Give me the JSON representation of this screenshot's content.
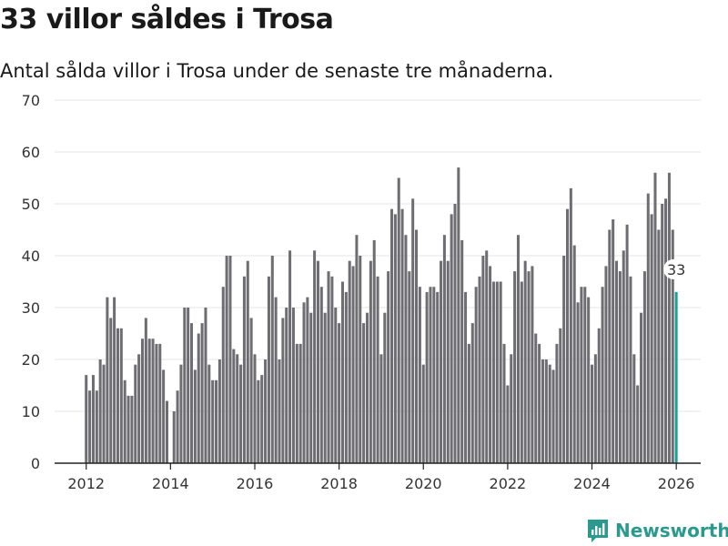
{
  "title": "33 villor såldes i Trosa",
  "subtitle": "Antal sålda villor i Trosa under de senaste tre månaderna.",
  "brand": "Newsworthy",
  "colors": {
    "bar": "#6d6d72",
    "highlight": "#17a094",
    "brand": "#2a9a8e",
    "grid": "#e6e6e6"
  },
  "chart_data": {
    "type": "bar",
    "title": "33 villor såldes i Trosa",
    "subtitle": "Antal sålda villor i Trosa under de senaste tre månaderna.",
    "xlabel": "",
    "ylabel": "",
    "ylim": [
      0,
      70
    ],
    "yticks": [
      0,
      10,
      20,
      30,
      40,
      50,
      60,
      70
    ],
    "xlim": [
      2011.25,
      2026.58
    ],
    "xticks": [
      2012,
      2014,
      2016,
      2018,
      2020,
      2022,
      2024,
      2026
    ],
    "grid": true,
    "start": 2012.0,
    "step": 0.083333,
    "highlight_label": "33",
    "values": [
      17,
      14,
      17,
      14,
      20,
      19,
      32,
      28,
      32,
      26,
      26,
      16,
      13,
      13,
      19,
      21,
      24,
      28,
      24,
      24,
      23,
      23,
      18,
      12,
      0,
      10,
      14,
      19,
      30,
      30,
      27,
      18,
      25,
      27,
      30,
      19,
      16,
      16,
      20,
      34,
      40,
      40,
      22,
      21,
      19,
      36,
      39,
      28,
      21,
      16,
      17,
      20,
      36,
      40,
      32,
      20,
      28,
      30,
      41,
      30,
      23,
      23,
      31,
      32,
      29,
      41,
      39,
      34,
      29,
      37,
      36,
      30,
      27,
      35,
      33,
      39,
      38,
      44,
      40,
      27,
      29,
      39,
      43,
      36,
      21,
      29,
      37,
      49,
      48,
      55,
      49,
      44,
      37,
      51,
      45,
      34,
      19,
      33,
      34,
      34,
      33,
      39,
      44,
      39,
      48,
      50,
      57,
      43,
      33,
      23,
      27,
      34,
      36,
      40,
      41,
      38,
      35,
      35,
      35,
      23,
      15,
      21,
      37,
      44,
      35,
      39,
      37,
      38,
      25,
      23,
      20,
      20,
      19,
      18,
      23,
      26,
      40,
      49,
      53,
      42,
      31,
      34,
      34,
      32,
      19,
      21,
      26,
      34,
      38,
      45,
      47,
      39,
      37,
      41,
      46,
      36,
      21,
      15,
      29,
      37,
      52,
      48,
      56,
      45,
      50,
      51,
      56,
      45,
      33
    ]
  }
}
